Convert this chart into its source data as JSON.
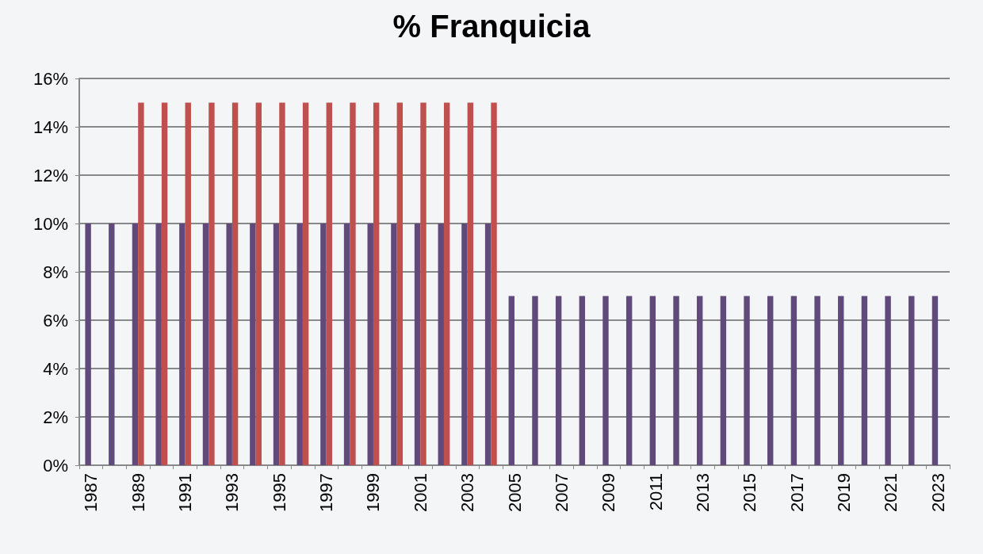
{
  "chart_data": {
    "type": "bar",
    "title": "% Franquicia",
    "categories": [
      "1987",
      null,
      "1989",
      null,
      "1991",
      null,
      "1993",
      null,
      "1995",
      null,
      "1997",
      null,
      "1999",
      null,
      "2001",
      null,
      "2003",
      null,
      "2005",
      null,
      "2007",
      null,
      "2009",
      null,
      "2011",
      null,
      "2013",
      null,
      "2015",
      null,
      "2017",
      null,
      "2019",
      null,
      "2021",
      null,
      "2023"
    ],
    "series": [
      {
        "color": "#604a7b",
        "values": [
          10,
          10,
          10,
          10,
          10,
          10,
          10,
          10,
          10,
          10,
          10,
          10,
          10,
          10,
          10,
          10,
          10,
          10,
          7,
          7,
          7,
          7,
          7,
          7,
          7,
          7,
          7,
          7,
          7,
          7,
          7,
          7,
          7,
          7,
          7,
          7,
          7
        ]
      },
      {
        "color": "#c0504d",
        "values": [
          null,
          null,
          15,
          15,
          15,
          15,
          15,
          15,
          15,
          15,
          15,
          15,
          15,
          15,
          15,
          15,
          15,
          15,
          null,
          null,
          null,
          null,
          null,
          null,
          null,
          null,
          null,
          null,
          null,
          null,
          null,
          null,
          null,
          null,
          null,
          null,
          null
        ]
      }
    ],
    "ylim": [
      0,
      16
    ],
    "yticks": [
      {
        "value": 0,
        "label": "0%"
      },
      {
        "value": 2,
        "label": "2%"
      },
      {
        "value": 4,
        "label": "4%"
      },
      {
        "value": 6,
        "label": "6%"
      },
      {
        "value": 8,
        "label": "8%"
      },
      {
        "value": 10,
        "label": "10%"
      },
      {
        "value": 12,
        "label": "12%"
      },
      {
        "value": 14,
        "label": "14%"
      },
      {
        "value": 16,
        "label": "16%"
      }
    ],
    "grid": "y"
  }
}
